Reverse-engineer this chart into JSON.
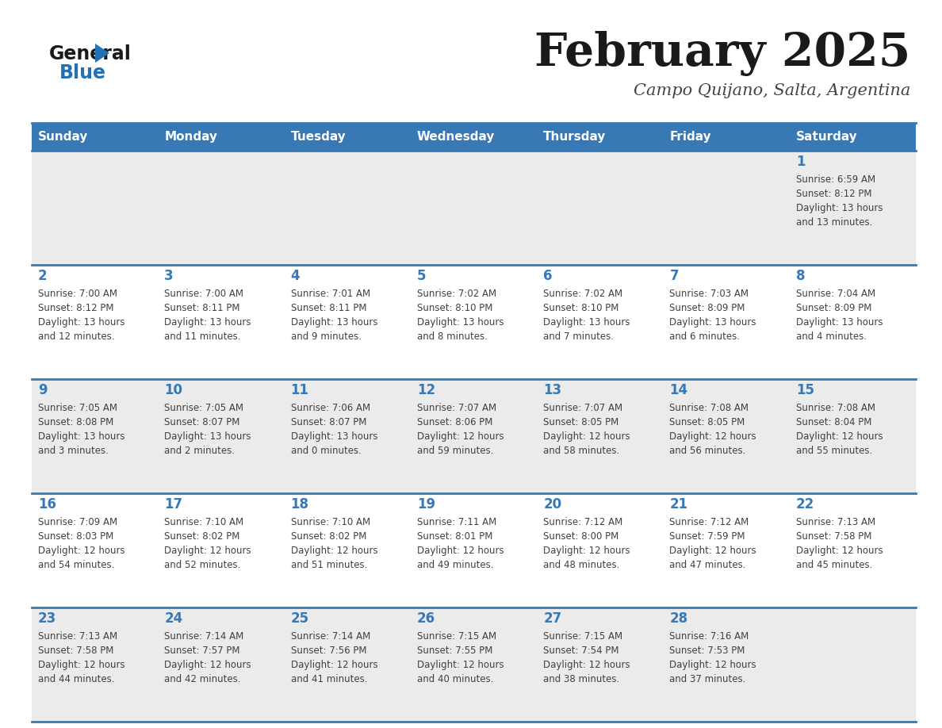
{
  "title": "February 2025",
  "subtitle": "Campo Quijano, Salta, Argentina",
  "days_of_week": [
    "Sunday",
    "Monday",
    "Tuesday",
    "Wednesday",
    "Thursday",
    "Friday",
    "Saturday"
  ],
  "header_bg": "#3778b5",
  "header_text_color": "#ffffff",
  "row_bg_odd": "#ebebeb",
  "row_bg_even": "#ffffff",
  "separator_color": "#3778b5",
  "day_number_color": "#3778b5",
  "cell_text_color": "#404040",
  "title_color": "#1a1a1a",
  "subtitle_color": "#444444",
  "calendar_data": [
    [
      {
        "day": null,
        "info": null
      },
      {
        "day": null,
        "info": null
      },
      {
        "day": null,
        "info": null
      },
      {
        "day": null,
        "info": null
      },
      {
        "day": null,
        "info": null
      },
      {
        "day": null,
        "info": null
      },
      {
        "day": 1,
        "info": "Sunrise: 6:59 AM\nSunset: 8:12 PM\nDaylight: 13 hours\nand 13 minutes."
      }
    ],
    [
      {
        "day": 2,
        "info": "Sunrise: 7:00 AM\nSunset: 8:12 PM\nDaylight: 13 hours\nand 12 minutes."
      },
      {
        "day": 3,
        "info": "Sunrise: 7:00 AM\nSunset: 8:11 PM\nDaylight: 13 hours\nand 11 minutes."
      },
      {
        "day": 4,
        "info": "Sunrise: 7:01 AM\nSunset: 8:11 PM\nDaylight: 13 hours\nand 9 minutes."
      },
      {
        "day": 5,
        "info": "Sunrise: 7:02 AM\nSunset: 8:10 PM\nDaylight: 13 hours\nand 8 minutes."
      },
      {
        "day": 6,
        "info": "Sunrise: 7:02 AM\nSunset: 8:10 PM\nDaylight: 13 hours\nand 7 minutes."
      },
      {
        "day": 7,
        "info": "Sunrise: 7:03 AM\nSunset: 8:09 PM\nDaylight: 13 hours\nand 6 minutes."
      },
      {
        "day": 8,
        "info": "Sunrise: 7:04 AM\nSunset: 8:09 PM\nDaylight: 13 hours\nand 4 minutes."
      }
    ],
    [
      {
        "day": 9,
        "info": "Sunrise: 7:05 AM\nSunset: 8:08 PM\nDaylight: 13 hours\nand 3 minutes."
      },
      {
        "day": 10,
        "info": "Sunrise: 7:05 AM\nSunset: 8:07 PM\nDaylight: 13 hours\nand 2 minutes."
      },
      {
        "day": 11,
        "info": "Sunrise: 7:06 AM\nSunset: 8:07 PM\nDaylight: 13 hours\nand 0 minutes."
      },
      {
        "day": 12,
        "info": "Sunrise: 7:07 AM\nSunset: 8:06 PM\nDaylight: 12 hours\nand 59 minutes."
      },
      {
        "day": 13,
        "info": "Sunrise: 7:07 AM\nSunset: 8:05 PM\nDaylight: 12 hours\nand 58 minutes."
      },
      {
        "day": 14,
        "info": "Sunrise: 7:08 AM\nSunset: 8:05 PM\nDaylight: 12 hours\nand 56 minutes."
      },
      {
        "day": 15,
        "info": "Sunrise: 7:08 AM\nSunset: 8:04 PM\nDaylight: 12 hours\nand 55 minutes."
      }
    ],
    [
      {
        "day": 16,
        "info": "Sunrise: 7:09 AM\nSunset: 8:03 PM\nDaylight: 12 hours\nand 54 minutes."
      },
      {
        "day": 17,
        "info": "Sunrise: 7:10 AM\nSunset: 8:02 PM\nDaylight: 12 hours\nand 52 minutes."
      },
      {
        "day": 18,
        "info": "Sunrise: 7:10 AM\nSunset: 8:02 PM\nDaylight: 12 hours\nand 51 minutes."
      },
      {
        "day": 19,
        "info": "Sunrise: 7:11 AM\nSunset: 8:01 PM\nDaylight: 12 hours\nand 49 minutes."
      },
      {
        "day": 20,
        "info": "Sunrise: 7:12 AM\nSunset: 8:00 PM\nDaylight: 12 hours\nand 48 minutes."
      },
      {
        "day": 21,
        "info": "Sunrise: 7:12 AM\nSunset: 7:59 PM\nDaylight: 12 hours\nand 47 minutes."
      },
      {
        "day": 22,
        "info": "Sunrise: 7:13 AM\nSunset: 7:58 PM\nDaylight: 12 hours\nand 45 minutes."
      }
    ],
    [
      {
        "day": 23,
        "info": "Sunrise: 7:13 AM\nSunset: 7:58 PM\nDaylight: 12 hours\nand 44 minutes."
      },
      {
        "day": 24,
        "info": "Sunrise: 7:14 AM\nSunset: 7:57 PM\nDaylight: 12 hours\nand 42 minutes."
      },
      {
        "day": 25,
        "info": "Sunrise: 7:14 AM\nSunset: 7:56 PM\nDaylight: 12 hours\nand 41 minutes."
      },
      {
        "day": 26,
        "info": "Sunrise: 7:15 AM\nSunset: 7:55 PM\nDaylight: 12 hours\nand 40 minutes."
      },
      {
        "day": 27,
        "info": "Sunrise: 7:15 AM\nSunset: 7:54 PM\nDaylight: 12 hours\nand 38 minutes."
      },
      {
        "day": 28,
        "info": "Sunrise: 7:16 AM\nSunset: 7:53 PM\nDaylight: 12 hours\nand 37 minutes."
      },
      {
        "day": null,
        "info": null
      }
    ]
  ],
  "logo_general_color": "#1a1a1a",
  "logo_blue_color": "#2271b3",
  "fig_bg": "#ffffff"
}
